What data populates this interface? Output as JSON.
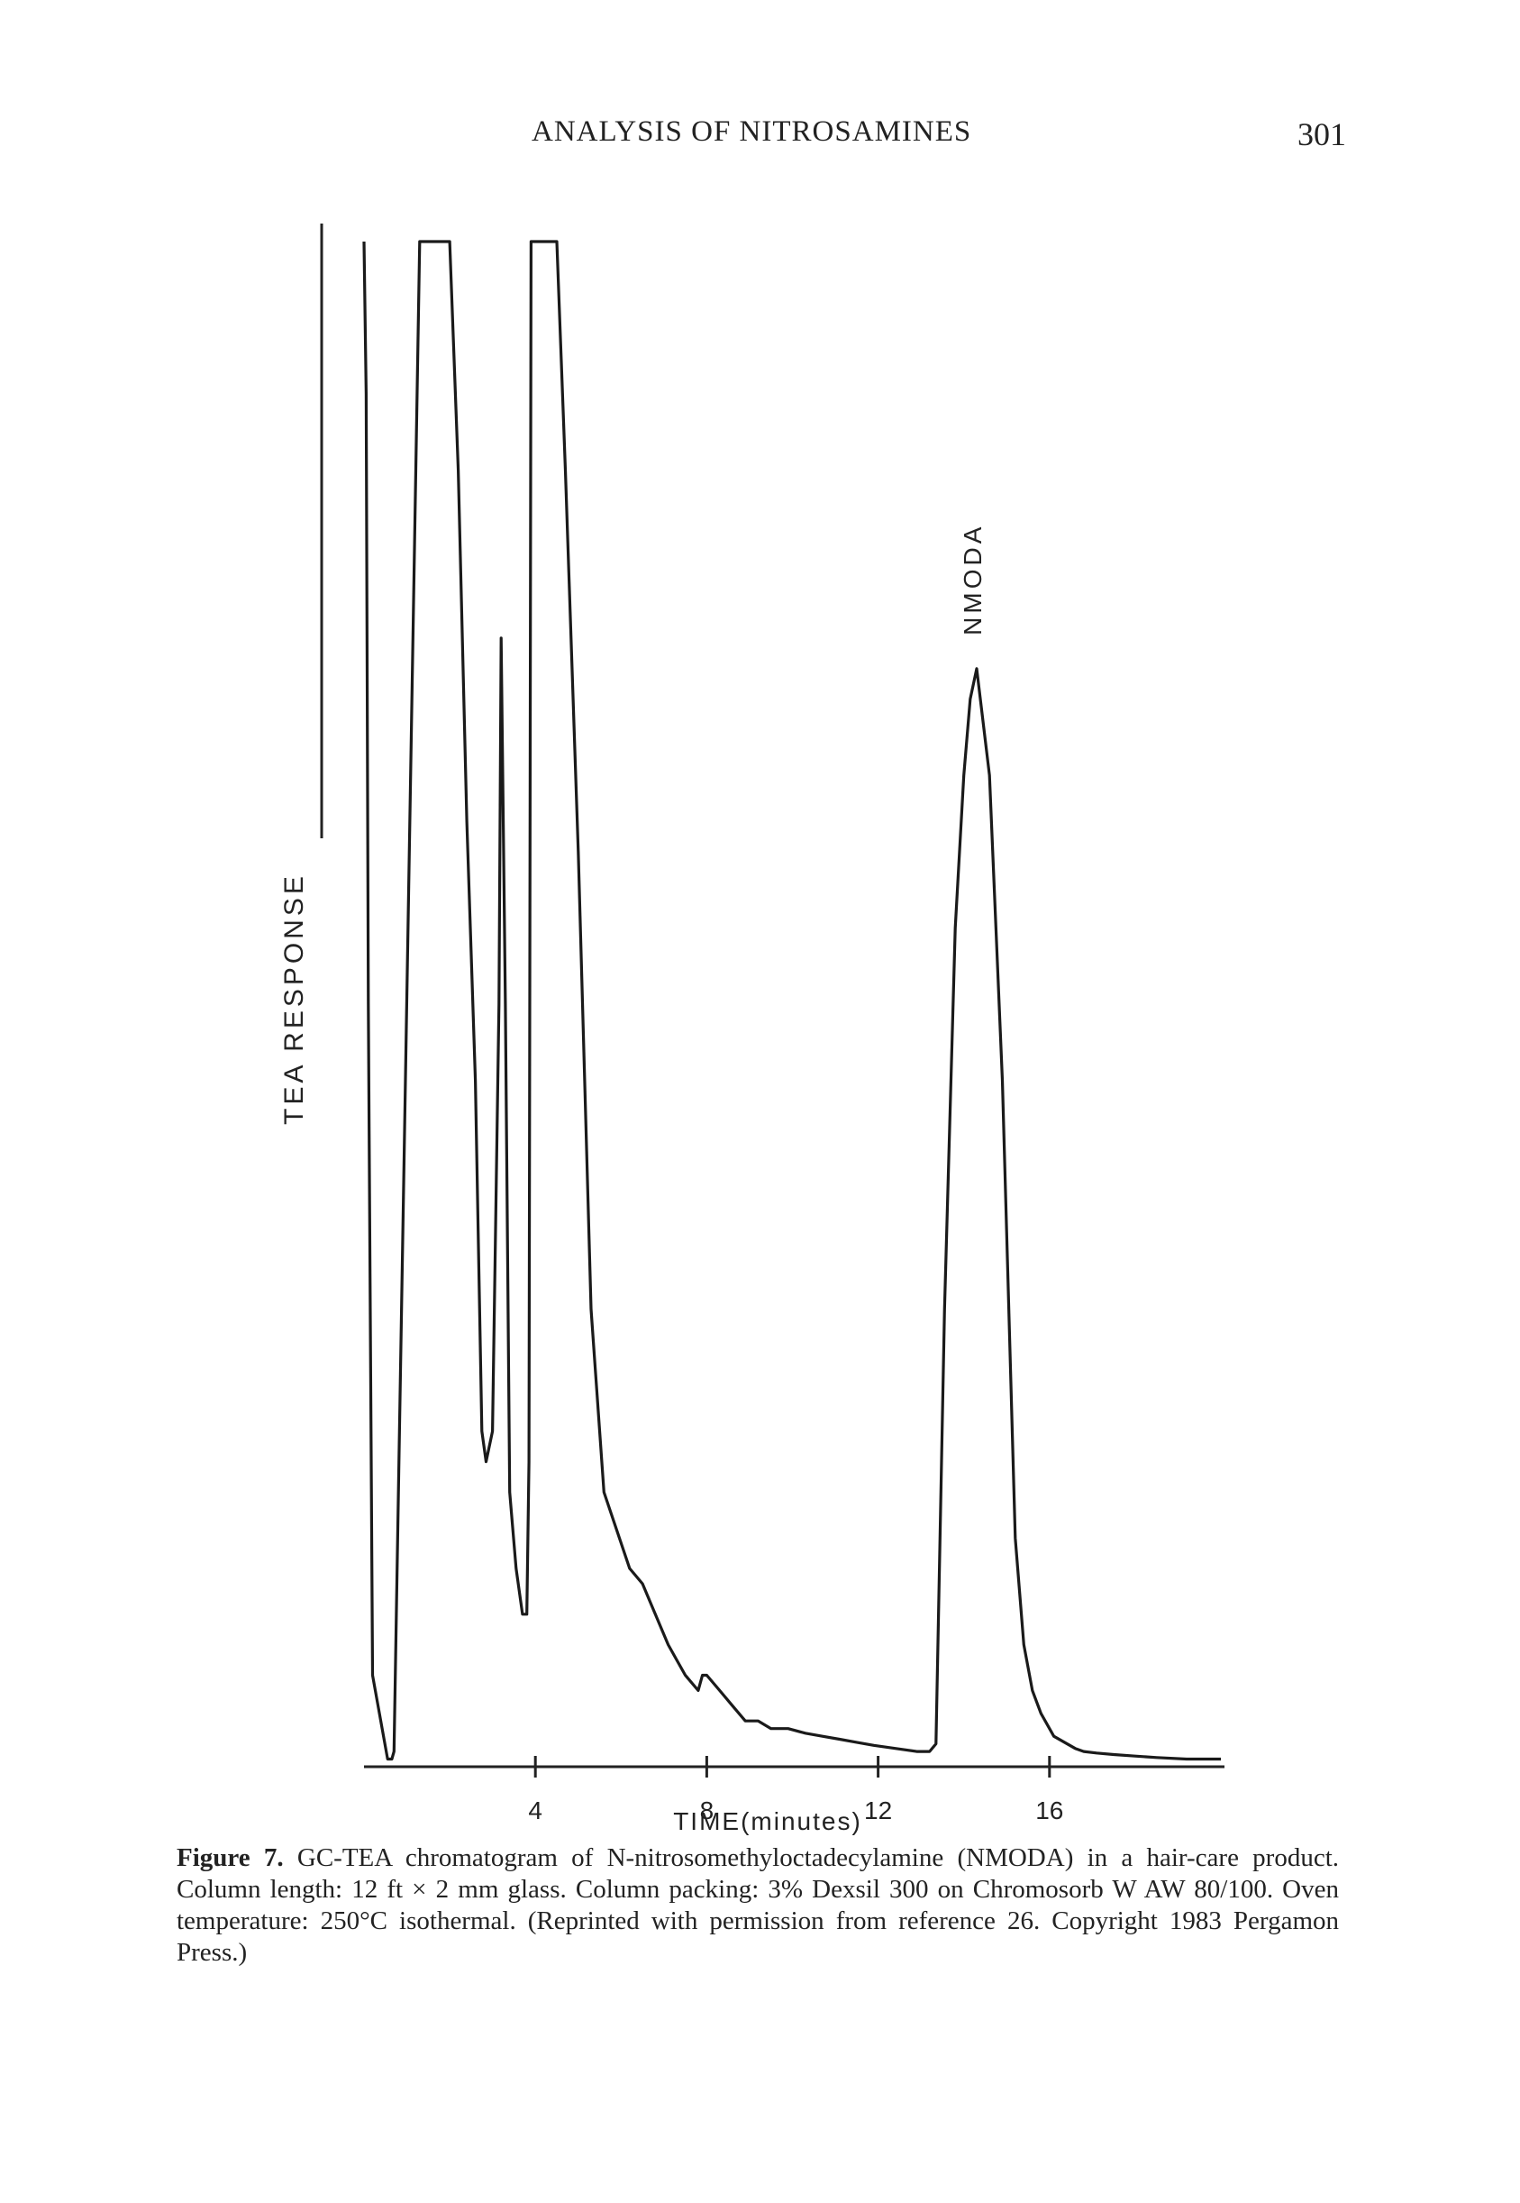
{
  "header": {
    "running_title": "ANALYSIS OF NITROSAMINES",
    "page_number": "301"
  },
  "chart_data": {
    "type": "line",
    "title": "",
    "xlabel": "TIME(minutes)",
    "ylabel": "TEA RESPONSE",
    "x_ticks": [
      "4",
      "8",
      "12",
      "16"
    ],
    "xlim": [
      0,
      20
    ],
    "ylim": [
      0,
      100
    ],
    "grid": false,
    "annotations": [
      {
        "text": "NMODA",
        "x": 14.2,
        "y": 73
      }
    ],
    "series": [
      {
        "name": "",
        "x": [
          0,
          0.05,
          0.1,
          0.2,
          0.55,
          0.65,
          0.7,
          1.3,
          1.6,
          1.8,
          2.0,
          2.2,
          2.4,
          2.6,
          2.75,
          2.85,
          3.0,
          3.15,
          3.2,
          3.3,
          3.4,
          3.55,
          3.7,
          3.8,
          3.85,
          3.9,
          4.3,
          4.5,
          4.7,
          5.0,
          5.3,
          5.6,
          6.2,
          6.5,
          6.8,
          7.1,
          7.3,
          7.5,
          7.8,
          7.9,
          8.0,
          8.3,
          8.6,
          8.9,
          9.2,
          9.5,
          9.9,
          10.3,
          10.7,
          11.1,
          11.5,
          11.9,
          12.4,
          12.9,
          13.2,
          13.35,
          13.55,
          13.8,
          14.0,
          14.15,
          14.3,
          14.6,
          14.9,
          15.2,
          15.4,
          15.6,
          15.8,
          16.1,
          16.6,
          16.8,
          17.1,
          17.5,
          18.0,
          18.5,
          19.2,
          20.0
        ],
        "y": [
          100,
          90,
          50,
          6,
          0.5,
          0.5,
          1,
          100,
          100,
          100,
          100,
          85,
          62,
          45,
          22,
          20,
          22,
          50,
          74,
          50,
          18,
          13,
          10,
          10,
          20,
          100,
          100,
          100,
          85,
          60,
          30,
          18,
          13,
          12,
          10,
          8,
          7,
          6,
          5,
          6,
          6,
          5,
          4,
          3,
          3,
          2.5,
          2.5,
          2.2,
          2.0,
          1.8,
          1.6,
          1.4,
          1.2,
          1.0,
          1.0,
          1.5,
          30,
          55,
          65,
          70,
          72,
          65,
          45,
          15,
          8,
          5,
          3.5,
          2,
          1.2,
          1.0,
          0.9,
          0.8,
          0.7,
          0.6,
          0.5,
          0.5
        ]
      }
    ]
  },
  "caption": {
    "label": "Figure 7.",
    "text": "GC-TEA chromatogram of N-nitrosomethyloctadecylamine (NMODA) in a hair-care product. Column length: 12 ft × 2 mm glass. Column packing: 3% Dexsil 300 on Chromosorb W AW 80/100. Oven temperature: 250°C isothermal. (Reprinted with permission from reference 26. Copyright 1983 Pergamon Press.)"
  }
}
